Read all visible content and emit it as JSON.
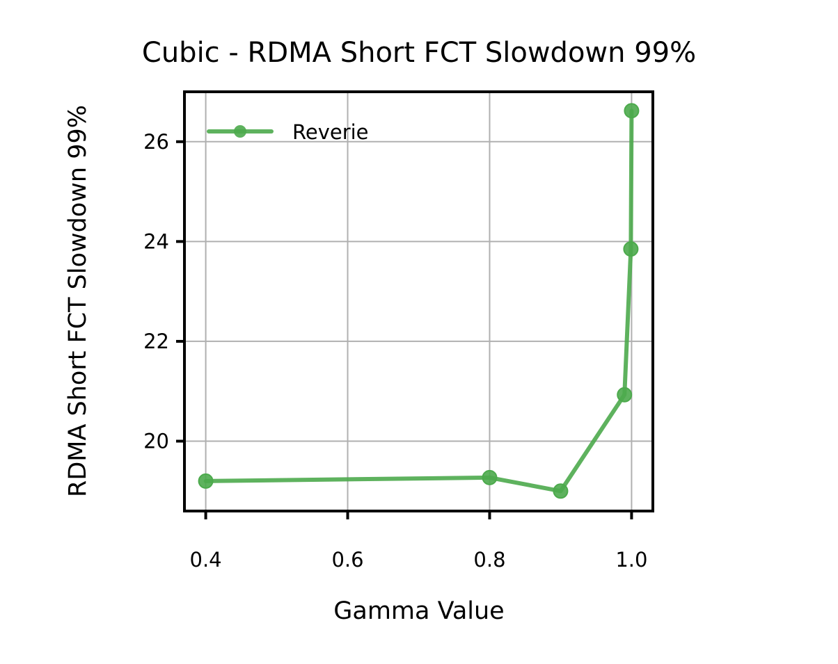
{
  "chart_data": {
    "type": "line",
    "title": "Cubic - RDMA Short FCT Slowdown 99%",
    "xlabel": "Gamma Value",
    "ylabel": "RDMA Short FCT Slowdown 99%",
    "xlim": [
      0.37,
      1.03
    ],
    "ylim": [
      18.6,
      27.0
    ],
    "xticks": [
      0.4,
      0.6,
      0.8,
      1.0
    ],
    "xtick_labels": [
      "0.4",
      "0.6",
      "0.8",
      "1.0"
    ],
    "yticks": [
      20,
      22,
      24,
      26
    ],
    "ytick_labels": [
      "20",
      "22",
      "24",
      "26"
    ],
    "grid": true,
    "legend_position": "top-left",
    "series": [
      {
        "name": "Reverie",
        "color": "#4caa4c",
        "marker": "circle",
        "x": [
          0.4,
          0.8,
          0.9,
          0.99,
          0.999,
          1.0
        ],
        "y": [
          19.2,
          19.27,
          19.0,
          20.93,
          23.85,
          26.62
        ]
      }
    ]
  }
}
